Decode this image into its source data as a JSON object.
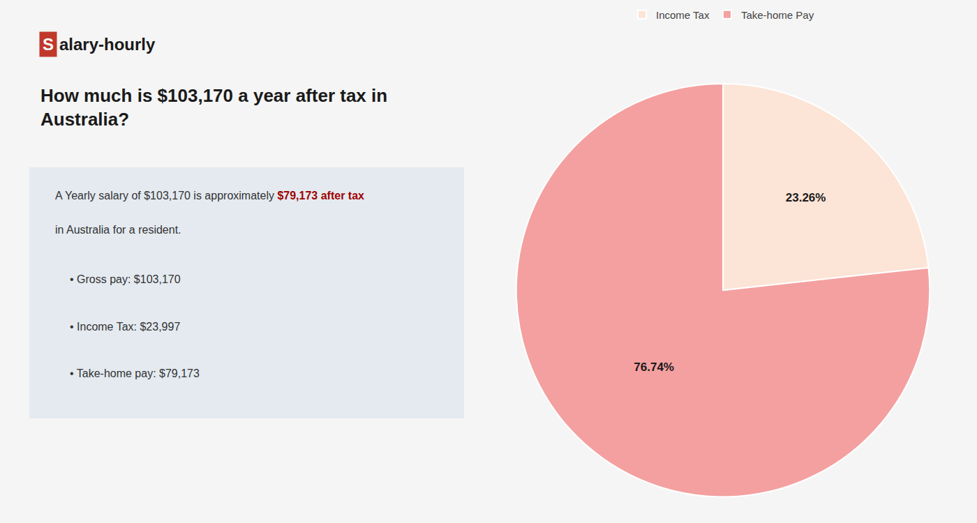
{
  "chart_data": {
    "type": "pie",
    "title": "How much is $103,170 a year after tax in\nAustralia?",
    "categories": [
      "Income Tax",
      "Take-home Pay"
    ],
    "values": [
      23.26,
      76.74
    ],
    "value_labels": [
      "23.26%",
      "76.74%"
    ],
    "colors": [
      "#fce4d6",
      "#f4a0a0"
    ],
    "data_labels": true,
    "legend": "top",
    "annotations": [
      "S",
      "alary-hourly",
      "A Yearly salary of $103,170 is approximately ",
      "$79,173 after tax",
      "in Australia for a resident.",
      "• Gross pay: $103,170",
      "• Income Tax: $23,997",
      "• Take-home pay: $79,173"
    ]
  }
}
